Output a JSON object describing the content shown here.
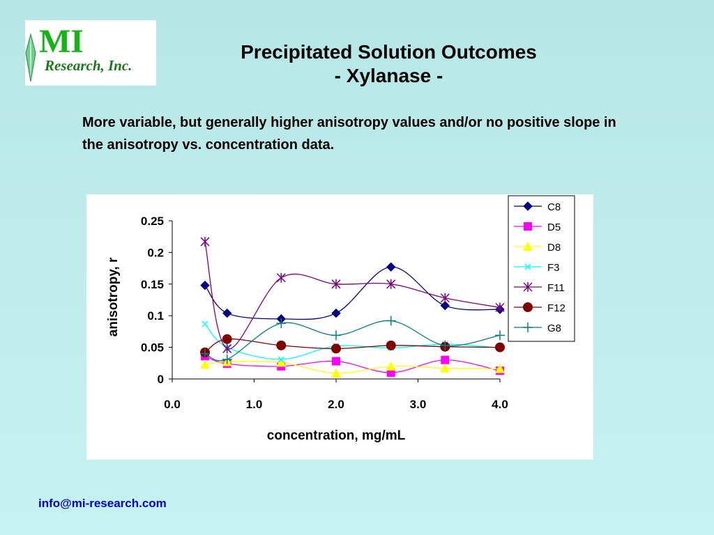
{
  "logo": {
    "mark": "MI",
    "sub": "Research, Inc."
  },
  "slide": {
    "title_line1": "Precipitated Solution Outcomes",
    "title_line2": "- Xylanase -",
    "description": "More variable, but generally higher anisotropy values and/or no positive slope in the anisotropy vs. concentration data.",
    "footer": "info@mi-research.com"
  },
  "colors": {
    "background": "#c6f3f1",
    "link": "#0000cc"
  },
  "chart_data": {
    "type": "line",
    "title": "",
    "xlabel": "concentration, mg/mL",
    "ylabel": "anisotropy, r",
    "xlim": [
      0,
      4
    ],
    "ylim": [
      0,
      0.25
    ],
    "xticks": [
      "0.0",
      "1.0",
      "2.0",
      "3.0",
      "4.0"
    ],
    "yticks": [
      "0",
      "0.05",
      "0.1",
      "0.15",
      "0.2",
      "0.25"
    ],
    "x": [
      0.4,
      0.67,
      1.33,
      2.0,
      2.67,
      3.33,
      4.0
    ],
    "grid": false,
    "legend_position": "right",
    "series": [
      {
        "name": "C8",
        "color": "#000080",
        "marker": "diamond",
        "values": [
          0.148,
          0.104,
          0.095,
          0.104,
          0.177,
          0.116,
          0.11
        ]
      },
      {
        "name": "D5",
        "color": "#ff00ff",
        "marker": "square",
        "values": [
          0.036,
          0.024,
          0.02,
          0.028,
          0.01,
          0.03,
          0.013
        ]
      },
      {
        "name": "D8",
        "color": "#ffff00",
        "marker": "triangle",
        "values": [
          0.023,
          0.027,
          0.026,
          0.009,
          0.02,
          0.017,
          0.016
        ]
      },
      {
        "name": "F3",
        "color": "#00ffff",
        "marker": "x",
        "values": [
          0.087,
          0.05,
          0.031,
          0.052,
          0.049,
          0.055,
          0.049
        ]
      },
      {
        "name": "F11",
        "color": "#800080",
        "marker": "star",
        "values": [
          0.217,
          0.048,
          0.16,
          0.15,
          0.15,
          0.128,
          0.113
        ]
      },
      {
        "name": "F12",
        "color": "#800000",
        "marker": "circle",
        "values": [
          0.042,
          0.063,
          0.053,
          0.048,
          0.053,
          0.051,
          0.05
        ]
      },
      {
        "name": "G8",
        "color": "#008080",
        "marker": "plus",
        "values": [
          0.04,
          0.031,
          0.088,
          0.069,
          0.092,
          0.053,
          0.069
        ]
      }
    ]
  }
}
